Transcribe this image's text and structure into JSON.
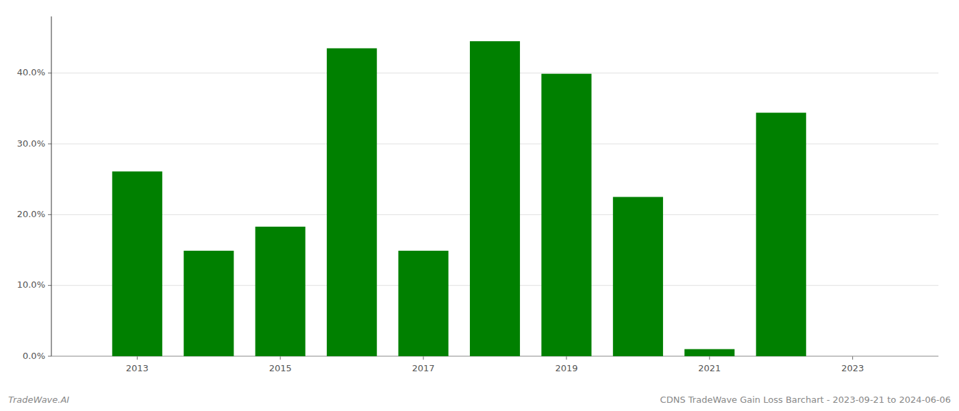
{
  "chart_data": {
    "type": "bar",
    "title": "CDNS TradeWave Gain Loss Barchart - 2023-09-21 to 2024-06-06",
    "annotations": [
      "TradeWave.AI"
    ],
    "x": [
      2013,
      2014,
      2015,
      2016,
      2017,
      2018,
      2019,
      2020,
      2021,
      2022,
      2023
    ],
    "values": [
      0.261,
      0.149,
      0.183,
      0.435,
      0.149,
      0.445,
      0.399,
      0.225,
      0.01,
      0.344,
      0.0
    ],
    "color": "#008000",
    "xlim": [
      2011.8,
      2024.2
    ],
    "xticks": [
      2013,
      2015,
      2017,
      2019,
      2021,
      2023
    ],
    "ylim": [
      0,
      0.48
    ],
    "yticks": [
      {
        "value": 0.0,
        "label": "0.0%"
      },
      {
        "value": 0.1,
        "label": "10.0%"
      },
      {
        "value": 0.2,
        "label": "20.0%"
      },
      {
        "value": 0.3,
        "label": "30.0%"
      },
      {
        "value": 0.4,
        "label": "40.0%"
      }
    ],
    "grid": true
  }
}
